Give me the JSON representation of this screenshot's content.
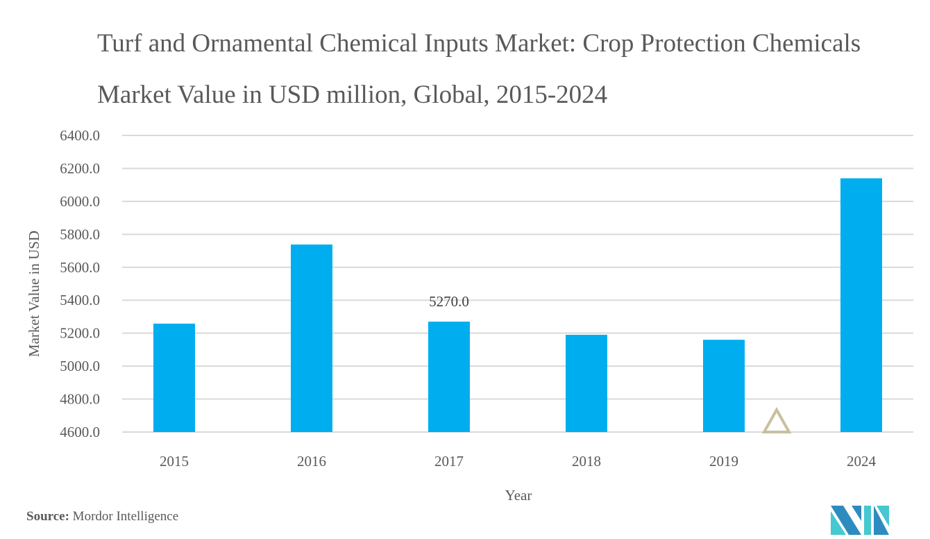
{
  "chart_data": {
    "type": "bar",
    "title": "Turf and Ornamental Chemical Inputs Market: Crop Protection Chemicals Market Value in USD million, Global, 2015-2024",
    "xlabel": "Year",
    "ylabel": "Market Value in USD",
    "categories": [
      "2015",
      "2016",
      "2017",
      "2018",
      "2019",
      "2024"
    ],
    "values": [
      5258,
      5738,
      5270,
      5190,
      5160,
      6140
    ],
    "data_labels": [
      null,
      null,
      "5270.0",
      null,
      null,
      null
    ],
    "ylim": [
      4600,
      6400
    ],
    "yticks": [
      "4600.0",
      "4800.0",
      "5000.0",
      "5200.0",
      "5400.0",
      "5600.0",
      "5800.0",
      "6000.0",
      "6200.0",
      "6400.0"
    ],
    "grid": true,
    "legend": "none",
    "bar_color": "#00AEEF",
    "annotations": [
      "axis-break triangle between 2019 and 2024"
    ]
  },
  "source": {
    "label": "Source:",
    "text": " Mordor Intelligence"
  },
  "colors": {
    "grid": "#D9D9D9",
    "text": "#595959",
    "marker": "#C8BFA0",
    "logo_dark": "#2E8BC0",
    "logo_light": "#45C8D0"
  }
}
